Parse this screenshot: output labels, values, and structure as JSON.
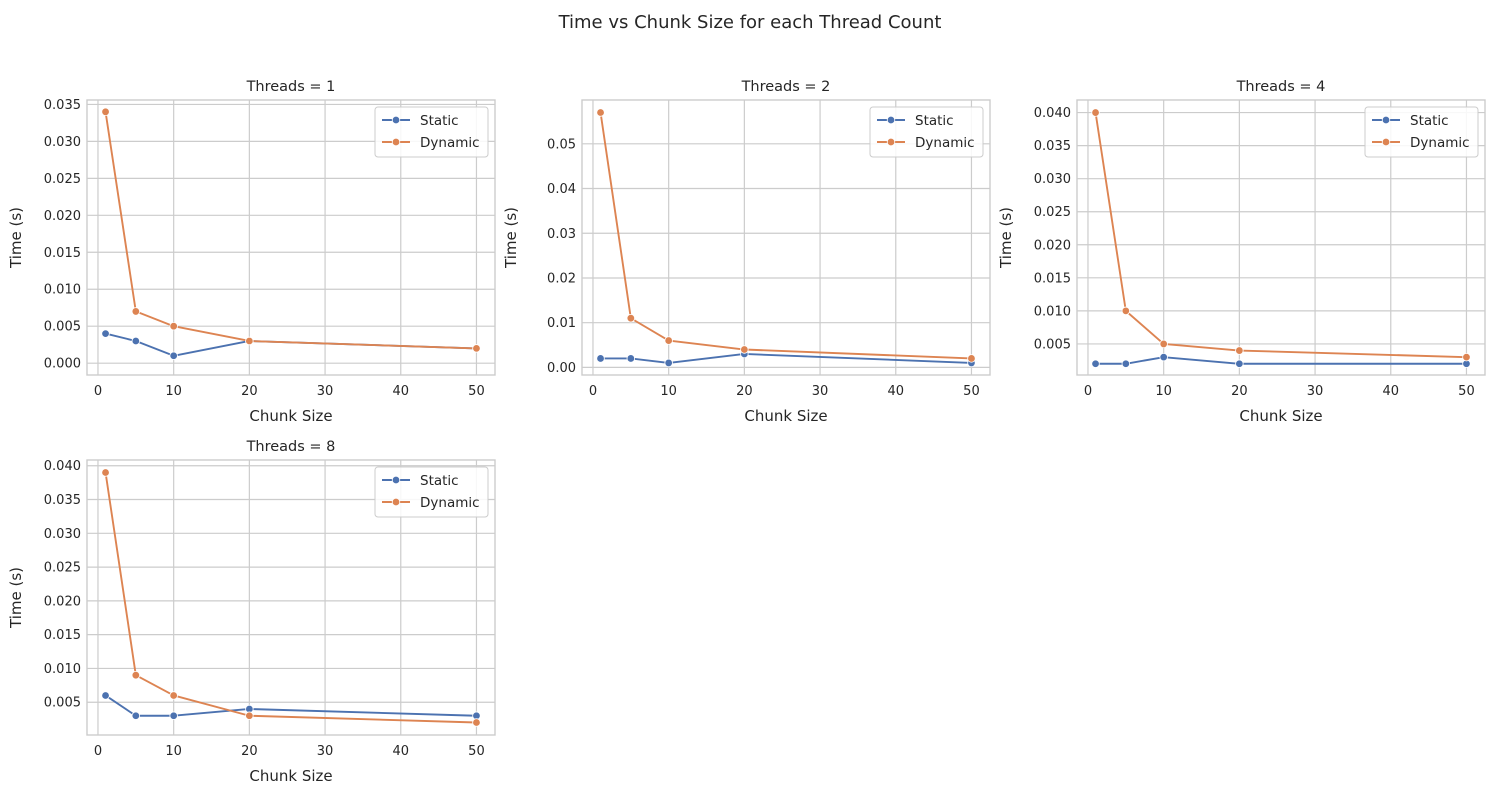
{
  "suptitle": "Time vs Chunk Size for each Thread Count",
  "chart_data": [
    {
      "type": "line",
      "title": "Threads = 1",
      "xlabel": "Chunk Size",
      "ylabel": "Time (s)",
      "x": [
        1,
        5,
        10,
        20,
        50
      ],
      "xlim": [
        -1.45,
        52.45
      ],
      "xticks": [
        0,
        10,
        20,
        30,
        40,
        50
      ],
      "ylim": [
        -0.0016,
        0.0356
      ],
      "yticks": [
        0.0,
        0.005,
        0.01,
        0.015,
        0.02,
        0.025,
        0.03,
        0.035
      ],
      "ytick_decimals": 3,
      "grid": true,
      "legend": "upper right",
      "series": [
        {
          "name": "Static",
          "color": "#4c72b0",
          "values": [
            0.004,
            0.003,
            0.001,
            0.003,
            0.002
          ]
        },
        {
          "name": "Dynamic",
          "color": "#dd8452",
          "values": [
            0.034,
            0.007,
            0.005,
            0.003,
            0.002
          ]
        }
      ]
    },
    {
      "type": "line",
      "title": "Threads = 2",
      "xlabel": "Chunk Size",
      "ylabel": "Time (s)",
      "x": [
        1,
        5,
        10,
        20,
        50
      ],
      "xlim": [
        -1.45,
        52.45
      ],
      "xticks": [
        0,
        10,
        20,
        30,
        40,
        50
      ],
      "ylim": [
        -0.0017,
        0.0598
      ],
      "yticks": [
        0.0,
        0.01,
        0.02,
        0.03,
        0.04,
        0.05
      ],
      "ytick_decimals": 2,
      "grid": true,
      "legend": "upper right",
      "series": [
        {
          "name": "Static",
          "color": "#4c72b0",
          "values": [
            0.002,
            0.002,
            0.001,
            0.003,
            0.001
          ]
        },
        {
          "name": "Dynamic",
          "color": "#dd8452",
          "values": [
            0.057,
            0.011,
            0.006,
            0.004,
            0.002
          ]
        }
      ]
    },
    {
      "type": "line",
      "title": "Threads = 4",
      "xlabel": "Chunk Size",
      "ylabel": "Time (s)",
      "x": [
        1,
        5,
        10,
        20,
        50
      ],
      "xlim": [
        -1.45,
        52.45
      ],
      "xticks": [
        0,
        10,
        20,
        30,
        40,
        50
      ],
      "ylim": [
        0.0003,
        0.0419
      ],
      "yticks": [
        0.005,
        0.01,
        0.015,
        0.02,
        0.025,
        0.03,
        0.035,
        0.04
      ],
      "ytick_decimals": 3,
      "grid": true,
      "legend": "upper right",
      "series": [
        {
          "name": "Static",
          "color": "#4c72b0",
          "values": [
            0.002,
            0.002,
            0.003,
            0.002,
            0.002
          ]
        },
        {
          "name": "Dynamic",
          "color": "#dd8452",
          "values": [
            0.04,
            0.01,
            0.005,
            0.004,
            0.003
          ]
        }
      ]
    },
    {
      "type": "line",
      "title": "Threads = 8",
      "xlabel": "Chunk Size",
      "ylabel": "Time (s)",
      "x": [
        1,
        5,
        10,
        20,
        50
      ],
      "xlim": [
        -1.45,
        52.45
      ],
      "xticks": [
        0,
        10,
        20,
        30,
        40,
        50
      ],
      "ylim": [
        0.00015,
        0.04085
      ],
      "yticks": [
        0.005,
        0.01,
        0.015,
        0.02,
        0.025,
        0.03,
        0.035,
        0.04
      ],
      "ytick_decimals": 3,
      "grid": true,
      "legend": "upper right",
      "series": [
        {
          "name": "Static",
          "color": "#4c72b0",
          "values": [
            0.006,
            0.003,
            0.003,
            0.004,
            0.003
          ]
        },
        {
          "name": "Dynamic",
          "color": "#dd8452",
          "values": [
            0.039,
            0.009,
            0.006,
            0.003,
            0.002
          ]
        }
      ]
    }
  ]
}
